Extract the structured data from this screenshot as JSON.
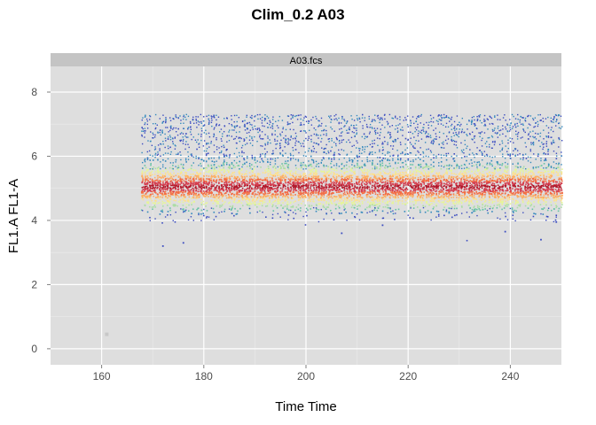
{
  "chart_data": {
    "type": "scatter",
    "title": "Clim_0.2 A03",
    "panel_label": "A03.fcs",
    "xlabel": "Time Time",
    "ylabel": "FL1.A FL1-A",
    "xlim": [
      150,
      250
    ],
    "ylim": [
      -0.5,
      8.8
    ],
    "x_ticks": [
      160,
      180,
      200,
      220,
      240
    ],
    "y_ticks": [
      0,
      2,
      4,
      6,
      8
    ],
    "grid": true,
    "legend": "none",
    "density_coloring": true,
    "colors": {
      "panel_background": "#dedede",
      "strip_background": "#c4c4c4",
      "grid": "#ffffff",
      "density_low": "#3b4cc0",
      "density_high": "#b2182b"
    },
    "bands": [
      {
        "name": "main population",
        "x_range": [
          168,
          250
        ],
        "y_center": 5.05,
        "y_spread": 0.35
      },
      {
        "name": "upper population",
        "x_range": [
          168,
          250
        ],
        "y_range": [
          6.0,
          7.3
        ]
      }
    ],
    "outliers": [
      {
        "x": 161,
        "y": 0.45
      },
      {
        "x": 172,
        "y": 3.2
      },
      {
        "x": 176,
        "y": 3.3
      },
      {
        "x": 207,
        "y": 3.6
      },
      {
        "x": 215,
        "y": 3.85
      },
      {
        "x": 239,
        "y": 3.65
      },
      {
        "x": 246,
        "y": 3.4
      },
      {
        "x": 249,
        "y": 3.95
      }
    ]
  }
}
